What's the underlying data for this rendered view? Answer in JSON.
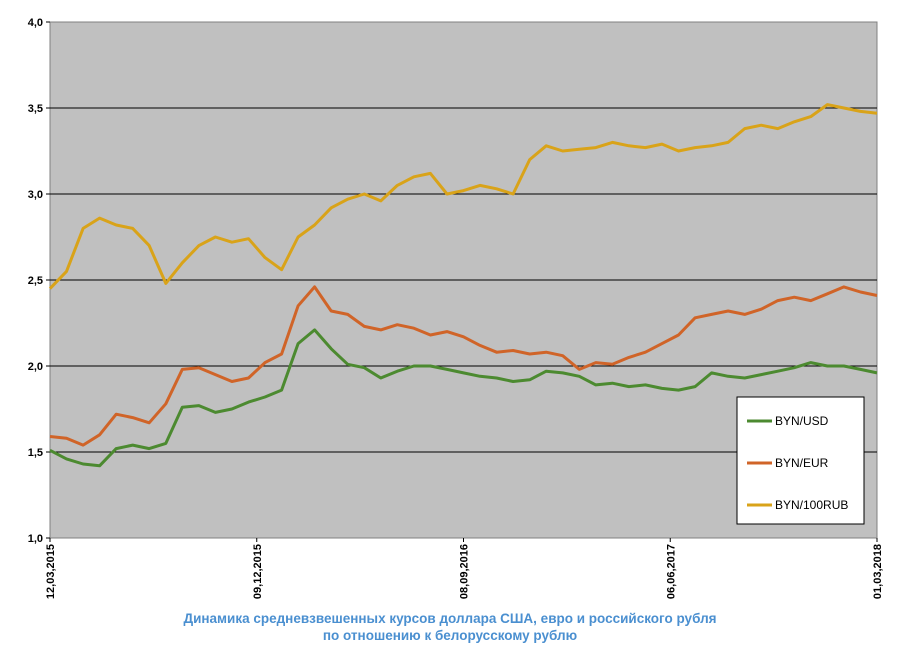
{
  "chart_data": {
    "type": "line",
    "caption": {
      "line1": "Динамика средневзвешенных курсов доллара США, евро и российского рубля",
      "line2": "по отношению к белорусскому рублю"
    },
    "x_range": [
      "12,03,2015",
      "01,03,2018"
    ],
    "x_ticks": [
      "12,03,2015",
      "09,12,2015",
      "08,09,2016",
      "06,06,2017",
      "01,03,2018"
    ],
    "ylim": [
      1.0,
      4.0
    ],
    "y_ticks": [
      "1,0",
      "1,5",
      "2,0",
      "2,5",
      "3,0",
      "3,5",
      "4,0"
    ],
    "grid": "horizontal",
    "legend_position": "right",
    "x_fractions": [
      0.0,
      0.02,
      0.04,
      0.06,
      0.08,
      0.1,
      0.12,
      0.14,
      0.16,
      0.18,
      0.2,
      0.22,
      0.24,
      0.26,
      0.28,
      0.3,
      0.32,
      0.34,
      0.36,
      0.38,
      0.4,
      0.42,
      0.44,
      0.46,
      0.48,
      0.5,
      0.52,
      0.54,
      0.56,
      0.58,
      0.6,
      0.62,
      0.64,
      0.66,
      0.68,
      0.7,
      0.72,
      0.74,
      0.76,
      0.78,
      0.8,
      0.82,
      0.84,
      0.86,
      0.88,
      0.9,
      0.92,
      0.94,
      0.96,
      0.98,
      1.0
    ],
    "series": [
      {
        "name": "BYN/USD",
        "color": "#4c8a30",
        "values": [
          1.51,
          1.46,
          1.43,
          1.42,
          1.52,
          1.54,
          1.52,
          1.55,
          1.76,
          1.77,
          1.73,
          1.75,
          1.79,
          1.82,
          1.86,
          2.13,
          2.21,
          2.1,
          2.01,
          1.99,
          1.93,
          1.97,
          2.0,
          2.0,
          1.98,
          1.96,
          1.94,
          1.93,
          1.91,
          1.92,
          1.97,
          1.96,
          1.94,
          1.89,
          1.9,
          1.88,
          1.89,
          1.87,
          1.86,
          1.88,
          1.96,
          1.94,
          1.93,
          1.95,
          1.97,
          1.99,
          2.02,
          2.0,
          2.0,
          1.98,
          1.96
        ]
      },
      {
        "name": "BYN/EUR",
        "color": "#d06428",
        "values": [
          1.59,
          1.58,
          1.54,
          1.6,
          1.72,
          1.7,
          1.67,
          1.78,
          1.98,
          1.99,
          1.95,
          1.91,
          1.93,
          2.02,
          2.07,
          2.35,
          2.46,
          2.32,
          2.3,
          2.23,
          2.21,
          2.24,
          2.22,
          2.18,
          2.2,
          2.17,
          2.12,
          2.08,
          2.09,
          2.07,
          2.08,
          2.06,
          1.98,
          2.02,
          2.01,
          2.05,
          2.08,
          2.13,
          2.18,
          2.28,
          2.3,
          2.32,
          2.3,
          2.33,
          2.38,
          2.4,
          2.38,
          2.42,
          2.46,
          2.43,
          2.41
        ]
      },
      {
        "name": "BYN/100RUB",
        "color": "#d9a319",
        "values": [
          2.45,
          2.55,
          2.8,
          2.86,
          2.82,
          2.8,
          2.7,
          2.48,
          2.6,
          2.7,
          2.75,
          2.72,
          2.74,
          2.63,
          2.56,
          2.75,
          2.82,
          2.92,
          2.97,
          3.0,
          2.96,
          3.05,
          3.1,
          3.12,
          3.0,
          3.02,
          3.05,
          3.03,
          3.0,
          3.2,
          3.28,
          3.25,
          3.26,
          3.27,
          3.3,
          3.28,
          3.27,
          3.29,
          3.25,
          3.27,
          3.28,
          3.3,
          3.38,
          3.4,
          3.38,
          3.42,
          3.45,
          3.52,
          3.5,
          3.48,
          3.47
        ]
      }
    ]
  }
}
